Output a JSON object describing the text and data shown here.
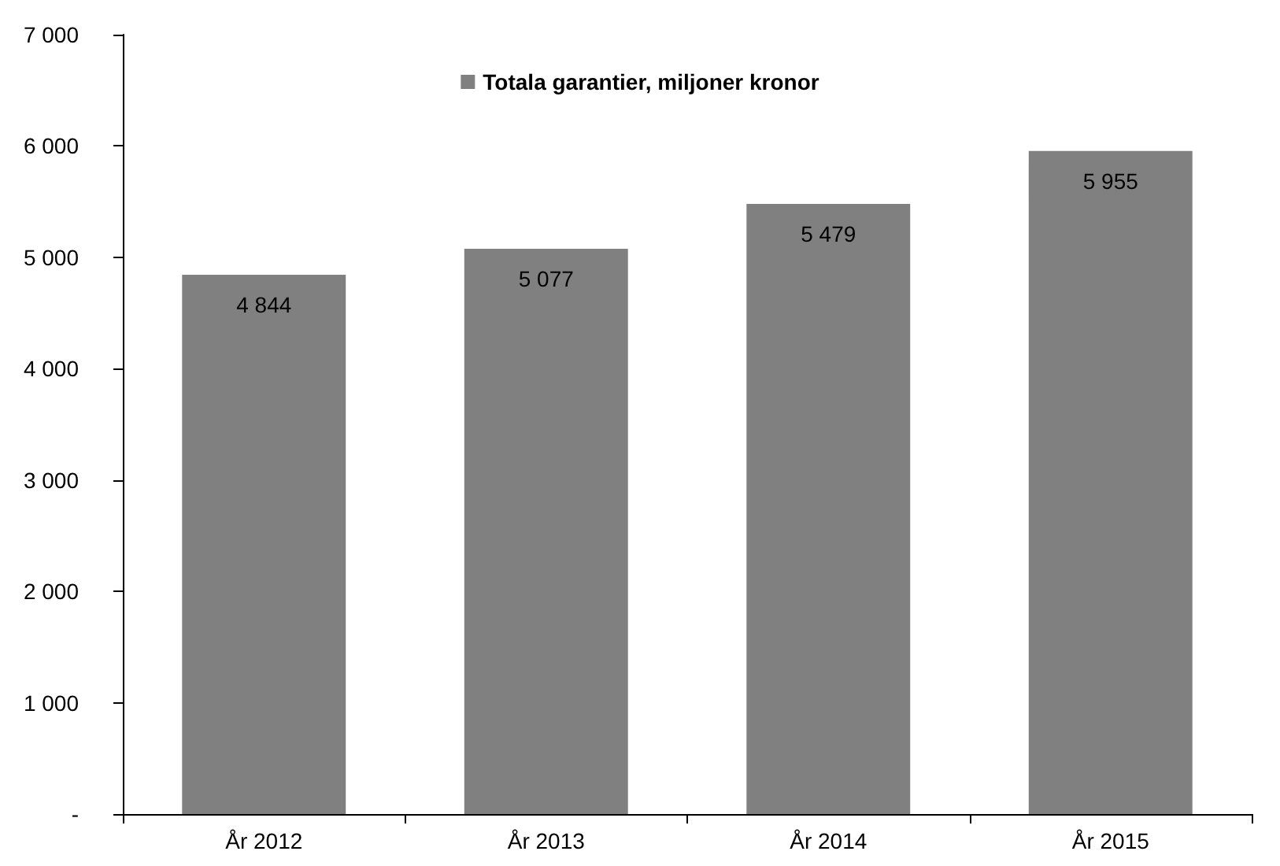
{
  "chart_data": {
    "type": "bar",
    "categories": [
      "År 2012",
      "År 2013",
      "År 2014",
      "År 2015"
    ],
    "series": [
      {
        "name": "Totala garantier, miljoner kronor",
        "color": "#808080",
        "values": [
          4844,
          5077,
          5479,
          5955
        ],
        "value_labels": [
          "4 844",
          "5 077",
          "5 479",
          "5 955"
        ]
      }
    ],
    "ylim": [
      0,
      7000
    ],
    "yticks": [
      {
        "value": 0,
        "label": "-"
      },
      {
        "value": 1000,
        "label": "1 000"
      },
      {
        "value": 2000,
        "label": "2 000"
      },
      {
        "value": 3000,
        "label": "3 000"
      },
      {
        "value": 4000,
        "label": "4 000"
      },
      {
        "value": 5000,
        "label": "5 000"
      },
      {
        "value": 6000,
        "label": "6 000"
      },
      {
        "value": 7000,
        "label": "7 000"
      }
    ],
    "grid": false,
    "legend": "top"
  }
}
